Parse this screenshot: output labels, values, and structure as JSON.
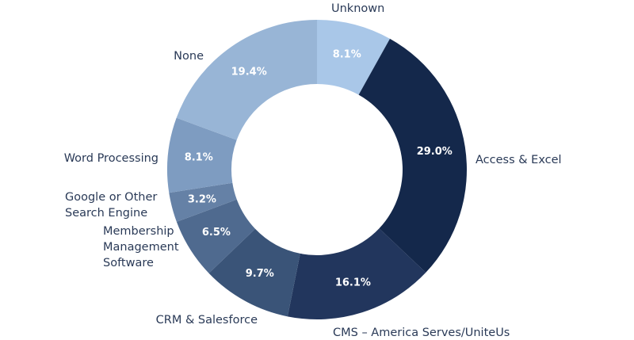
{
  "chart_data": {
    "type": "pie",
    "donut": true,
    "title": "",
    "slices": [
      {
        "label": "Unknown",
        "value": 8.1,
        "display": "8.1%",
        "color": "#a9c7e8"
      },
      {
        "label": "Access & Excel",
        "value": 29.0,
        "display": "29.0%",
        "color": "#14284b"
      },
      {
        "label": "CMS – America Serves/UniteUs",
        "value": 16.1,
        "display": "16.1%",
        "color": "#22365d"
      },
      {
        "label": "CRM & Salesforce",
        "value": 9.7,
        "display": "9.7%",
        "color": "#3a5478"
      },
      {
        "label": "Membership Management Software",
        "value": 6.5,
        "display": "6.5%",
        "color": "#4f6a8f"
      },
      {
        "label": "Google or Other Search Engine",
        "value": 3.2,
        "display": "3.2%",
        "color": "#6581a6"
      },
      {
        "label": "Word Processing",
        "value": 8.1,
        "display": "8.1%",
        "color": "#7e9cc1"
      },
      {
        "label": "None",
        "value": 19.4,
        "display": "19.4%",
        "color": "#98b5d6"
      }
    ]
  }
}
